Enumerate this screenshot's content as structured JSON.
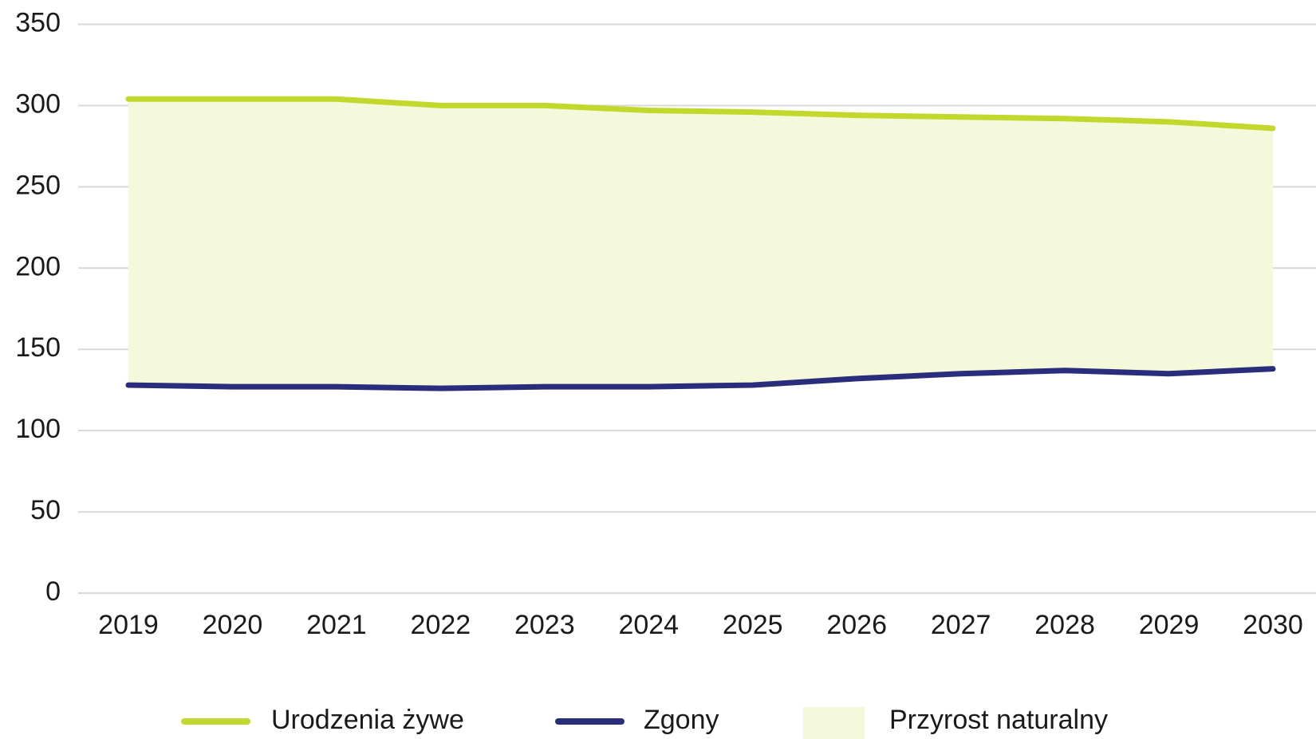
{
  "chart_data": {
    "type": "line",
    "categories": [
      "2019",
      "2020",
      "2021",
      "2022",
      "2023",
      "2024",
      "2025",
      "2026",
      "2027",
      "2028",
      "2029",
      "2030"
    ],
    "series": [
      {
        "name": "Urodzenia żywe",
        "color": "#c3d82d",
        "values": [
          304,
          304,
          304,
          300,
          300,
          297,
          296,
          294,
          293,
          292,
          290,
          286
        ]
      },
      {
        "name": "Zgony",
        "color": "#2a2d7c",
        "values": [
          128,
          127,
          127,
          126,
          127,
          127,
          128,
          132,
          135,
          137,
          135,
          138
        ]
      }
    ],
    "fill_between": {
      "name": "Przyrost naturalny",
      "color": "#f5f9dc"
    },
    "ylim": [
      0,
      350
    ],
    "yticks": [
      0,
      50,
      100,
      150,
      200,
      250,
      300,
      350
    ],
    "grid": true
  }
}
